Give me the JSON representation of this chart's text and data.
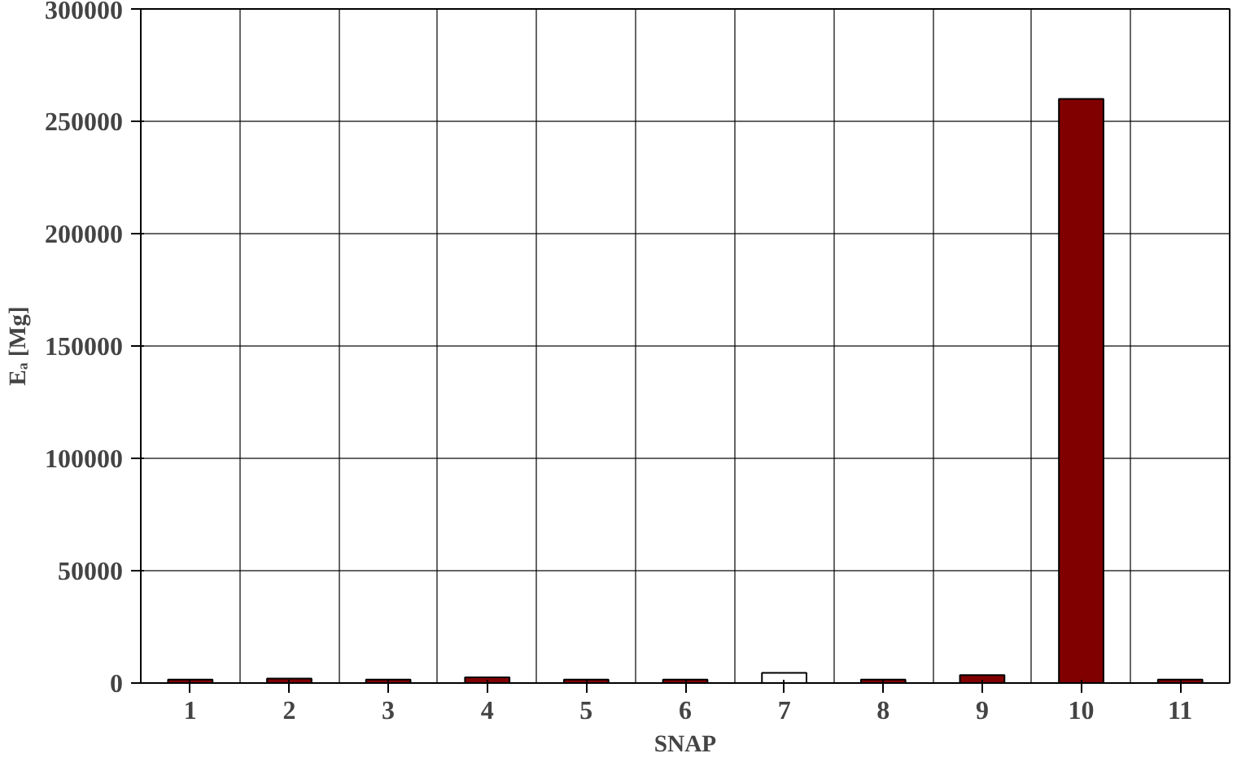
{
  "chart_data": {
    "type": "bar",
    "xlabel": "SNAP",
    "ylabel": "Eₐ [Mg]",
    "categories": [
      "1",
      "2",
      "3",
      "4",
      "5",
      "6",
      "7",
      "8",
      "9",
      "10",
      "11"
    ],
    "values": [
      1500,
      2000,
      1500,
      2500,
      1500,
      1500,
      4500,
      1500,
      3500,
      260000,
      1500
    ],
    "colors": [
      "#800000",
      "#800000",
      "#800000",
      "#800000",
      "#800000",
      "#800000",
      "#ffffff",
      "#800000",
      "#800000",
      "#800000",
      "#800000"
    ],
    "ylim": [
      0,
      300000
    ],
    "yticks": [
      0,
      50000,
      100000,
      150000,
      200000,
      250000,
      300000
    ],
    "grid": true
  }
}
